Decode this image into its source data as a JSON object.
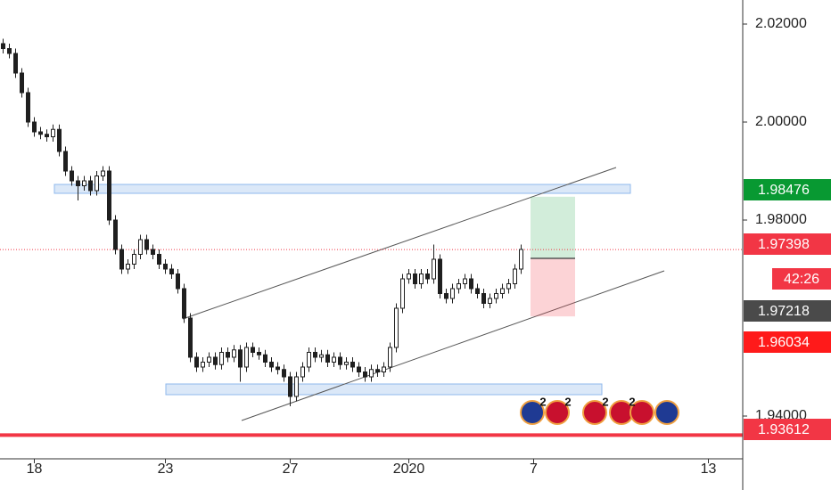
{
  "chart_data": {
    "type": "candlestick",
    "x": [
      0,
      1,
      2,
      3,
      4,
      5,
      6,
      7,
      8,
      9,
      10,
      11,
      12,
      13,
      14,
      15,
      16,
      17,
      18,
      19,
      20,
      21,
      22,
      23,
      24,
      25,
      26,
      27,
      28,
      29,
      30,
      31,
      32,
      33,
      34,
      35,
      36,
      37,
      38,
      39,
      40,
      41,
      42,
      43,
      44,
      45,
      46,
      47,
      48,
      49,
      50,
      51,
      52,
      53,
      54,
      55,
      56,
      57,
      58,
      59,
      60,
      61,
      62,
      63,
      64,
      65,
      66,
      67,
      68,
      69,
      70,
      71,
      72,
      73,
      74,
      75,
      76,
      77,
      78,
      79,
      80,
      81,
      82,
      83
    ],
    "open": [
      2.016,
      2.015,
      2.014,
      2.01,
      2.006,
      2.0,
      1.998,
      1.9975,
      1.997,
      1.9985,
      1.994,
      1.99,
      1.988,
      1.987,
      1.988,
      1.986,
      1.989,
      1.99,
      1.98,
      1.974,
      1.97,
      1.971,
      1.973,
      1.976,
      1.974,
      1.973,
      1.971,
      1.97,
      1.969,
      1.966,
      1.96,
      1.952,
      1.95,
      1.951,
      1.952,
      1.9505,
      1.953,
      1.952,
      1.9535,
      1.95,
      1.954,
      1.953,
      1.9525,
      1.951,
      1.95,
      1.9495,
      1.948,
      1.944,
      1.948,
      1.95,
      1.953,
      1.952,
      1.9525,
      1.951,
      1.952,
      1.9505,
      1.951,
      1.95,
      1.949,
      1.948,
      1.9495,
      1.949,
      1.95,
      1.954,
      1.962,
      1.968,
      1.969,
      1.967,
      1.969,
      1.968,
      1.972,
      1.965,
      1.964,
      1.966,
      1.967,
      1.968,
      1.966,
      1.965,
      1.963,
      1.964,
      1.965,
      1.966,
      1.967,
      1.97
    ],
    "high": [
      2.017,
      2.016,
      2.015,
      2.011,
      2.007,
      2.001,
      1.999,
      1.9985,
      1.9995,
      1.9995,
      1.995,
      1.991,
      1.989,
      1.989,
      1.989,
      1.99,
      1.991,
      1.991,
      1.981,
      1.975,
      1.972,
      1.974,
      1.977,
      1.977,
      1.975,
      1.974,
      1.972,
      1.971,
      1.97,
      1.967,
      1.961,
      1.953,
      1.952,
      1.953,
      1.953,
      1.954,
      1.954,
      1.9545,
      1.9545,
      1.955,
      1.955,
      1.954,
      1.9535,
      1.952,
      1.951,
      1.9505,
      1.949,
      1.949,
      1.951,
      1.954,
      1.954,
      1.9535,
      1.9535,
      1.953,
      1.953,
      1.952,
      1.952,
      1.951,
      1.95,
      1.9505,
      1.9505,
      1.951,
      1.955,
      1.963,
      1.969,
      1.97,
      1.97,
      1.97,
      1.97,
      1.975,
      1.973,
      1.966,
      1.967,
      1.968,
      1.969,
      1.969,
      1.967,
      1.966,
      1.965,
      1.966,
      1.967,
      1.968,
      1.971,
      1.975
    ],
    "low": [
      2.014,
      2.013,
      2.009,
      2.005,
      1.999,
      1.997,
      1.9965,
      1.996,
      1.996,
      1.993,
      1.989,
      1.987,
      1.984,
      1.986,
      1.985,
      1.985,
      1.988,
      1.979,
      1.973,
      1.969,
      1.969,
      1.97,
      1.972,
      1.973,
      1.972,
      1.97,
      1.969,
      1.968,
      1.965,
      1.959,
      1.951,
      1.949,
      1.949,
      1.95,
      1.9495,
      1.9495,
      1.951,
      1.951,
      1.947,
      1.949,
      1.952,
      1.9515,
      1.95,
      1.949,
      1.9485,
      1.947,
      1.942,
      1.943,
      1.947,
      1.949,
      1.951,
      1.951,
      1.95,
      1.95,
      1.9495,
      1.9495,
      1.949,
      1.948,
      1.947,
      1.947,
      1.948,
      1.948,
      1.949,
      1.953,
      1.961,
      1.967,
      1.966,
      1.966,
      1.967,
      1.967,
      1.964,
      1.963,
      1.963,
      1.965,
      1.966,
      1.965,
      1.964,
      1.962,
      1.962,
      1.963,
      1.964,
      1.965,
      1.966,
      1.969
    ],
    "close": [
      2.015,
      2.014,
      2.01,
      2.006,
      2.0,
      1.998,
      1.9975,
      1.997,
      1.9985,
      1.994,
      1.99,
      1.988,
      1.987,
      1.988,
      1.986,
      1.989,
      1.99,
      1.98,
      1.974,
      1.97,
      1.971,
      1.973,
      1.976,
      1.974,
      1.973,
      1.971,
      1.97,
      1.969,
      1.966,
      1.96,
      1.952,
      1.95,
      1.951,
      1.952,
      1.9505,
      1.953,
      1.952,
      1.9535,
      1.95,
      1.954,
      1.953,
      1.9525,
      1.951,
      1.95,
      1.9495,
      1.948,
      1.944,
      1.948,
      1.95,
      1.953,
      1.952,
      1.9525,
      1.951,
      1.952,
      1.9505,
      1.951,
      1.95,
      1.949,
      1.948,
      1.9495,
      1.949,
      1.95,
      1.954,
      1.962,
      1.968,
      1.969,
      1.967,
      1.969,
      1.968,
      1.972,
      1.965,
      1.964,
      1.966,
      1.967,
      1.968,
      1.966,
      1.965,
      1.963,
      1.964,
      1.965,
      1.966,
      1.967,
      1.97,
      1.974
    ],
    "color": "#1f1f1f",
    "xlim": [
      -0.5,
      118.5
    ],
    "xticks": [
      {
        "value": 5,
        "label": "18"
      },
      {
        "value": 26,
        "label": "23"
      },
      {
        "value": 46,
        "label": "27"
      },
      {
        "value": 65,
        "label": "2020"
      },
      {
        "value": 85,
        "label": "7"
      },
      {
        "value": 113,
        "label": "13"
      }
    ],
    "ylim": [
      1.93127,
      2.02491
    ],
    "yticks": [
      {
        "value": 1.94,
        "label": "1.94000"
      },
      {
        "value": 1.98,
        "label": "1.98000"
      },
      {
        "value": 2.0,
        "label": "2.00000"
      },
      {
        "value": 2.02,
        "label": "2.02000"
      }
    ],
    "price_lines": [
      {
        "value": 1.98476,
        "color": "#089932"
      },
      {
        "value": 1.97398,
        "color": "#f23645",
        "countdown": "42:26"
      },
      {
        "value": 1.97218,
        "color": "#4a4a4a"
      },
      {
        "value": 1.96034,
        "color": "#ff1a1a"
      },
      {
        "value": 1.93612,
        "color": "#f23645"
      }
    ],
    "event_badges": [
      "2",
      "2",
      "2",
      "2"
    ],
    "grid": false
  }
}
